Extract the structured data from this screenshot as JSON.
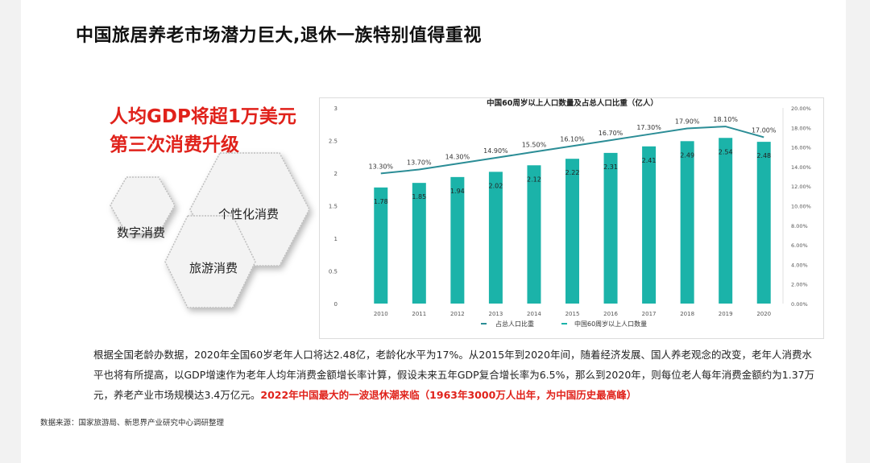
{
  "page": {
    "title": "中国旅居养老市场潜力巨大,退休一族特别值得重视",
    "headline_line1": "人均GDP将超1万美元",
    "headline_line2": "第三次消费升级",
    "hex_labels": [
      "数字消费",
      "个性化消费",
      "旅游消费"
    ],
    "body_part1": "根据全国老龄办数据，2020年全国60岁老年人口将达2.48亿，老龄化水平为17%。从2015年到2020年间，随着经济发展、国人养老观念的改变，老年人消费水平也将有所提高，以GDP增速作为老年人均年消费金额增长率计算，假设未来五年GDP复合增长率为6.5%，那么到2020年，则每位老人每年消费金额约为1.37万元，养老产业市场规模达3.4万亿元。",
    "body_highlight": "2022年中国最大的一波退休潮来临（1963年3000万人出年，为中国历史最高峰）",
    "source": "数据来源：国家旅游局、新思界产业研究中心调研整理"
  },
  "colors": {
    "accent_red": "#e0221b",
    "bar": "#1bb3a9",
    "line": "#2b8d96"
  },
  "chart_data": {
    "type": "bar",
    "title": "中国60周岁以上人口数量及占总人口比重（亿人）",
    "categories": [
      "2010",
      "2011",
      "2012",
      "2013",
      "2014",
      "2015",
      "2016",
      "2017",
      "2018",
      "2019",
      "2020"
    ],
    "series": [
      {
        "name": "中国60周岁以上人口数量",
        "type": "bar",
        "axis": "left",
        "values": [
          1.78,
          1.85,
          1.94,
          2.02,
          2.12,
          2.22,
          2.31,
          2.41,
          2.49,
          2.54,
          2.48
        ]
      },
      {
        "name": "占总人口比重",
        "type": "line",
        "axis": "right",
        "values": [
          13.3,
          13.7,
          14.3,
          14.9,
          15.5,
          16.1,
          16.7,
          17.3,
          17.9,
          18.1,
          17.0
        ],
        "labels": [
          "13.30%",
          "13.70%",
          "14.30%",
          "14.90%",
          "15.50%",
          "16.10%",
          "16.70%",
          "17.30%",
          "17.90%",
          "18.10%",
          "17.00%"
        ]
      }
    ],
    "ylim": [
      0,
      3
    ],
    "yticks": [
      "0",
      "0.5",
      "1",
      "1.5",
      "2",
      "2.5",
      "3"
    ],
    "y2lim": [
      0,
      20
    ],
    "y2ticks": [
      "0.00%",
      "2.00%",
      "4.00%",
      "6.00%",
      "8.00%",
      "10.00%",
      "12.00%",
      "14.00%",
      "16.00%",
      "18.00%",
      "20.00%"
    ],
    "legend": [
      "占总人口比重",
      "中国60周岁以上人口数量"
    ]
  }
}
